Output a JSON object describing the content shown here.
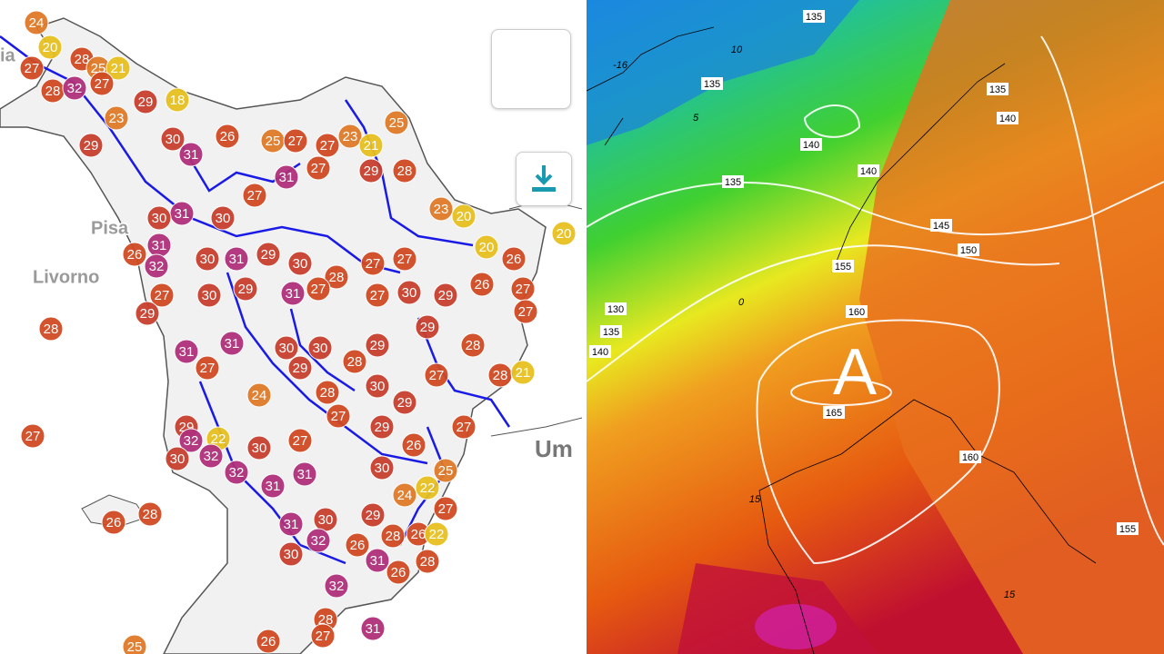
{
  "left_map": {
    "place_labels": [
      "ia",
      "Pisa",
      "Livorno",
      "Um"
    ],
    "stations": [
      24,
      20,
      27,
      28,
      32,
      28,
      25,
      21,
      27,
      18,
      29,
      23,
      29,
      30,
      31,
      26,
      25,
      27,
      27,
      23,
      21,
      25,
      28,
      29,
      27,
      31,
      27,
      30,
      31,
      30,
      26,
      31,
      32,
      30,
      31,
      29,
      30,
      28,
      27,
      27,
      23,
      20,
      20,
      26,
      20,
      27,
      27,
      26,
      29,
      29,
      30,
      27,
      27,
      31,
      29,
      30,
      27,
      29,
      28,
      31,
      31,
      30,
      30,
      29,
      28,
      28,
      28,
      21,
      27,
      29,
      30,
      28,
      29,
      24,
      27,
      29,
      32,
      22,
      30,
      32,
      30,
      27,
      27,
      29,
      26,
      25,
      30,
      27,
      27,
      32,
      31,
      31,
      24,
      22,
      27,
      29,
      30,
      32,
      31,
      30,
      26,
      28,
      26,
      22,
      31,
      28,
      26,
      32,
      26,
      28,
      25,
      26,
      28,
      27,
      31
    ]
  },
  "right_map": {
    "isobars": [
      135,
      135,
      135,
      140,
      140,
      135,
      140,
      145,
      150,
      155,
      160,
      165,
      160,
      155,
      130,
      135,
      140
    ],
    "temperature_labels": [
      -16,
      10,
      5,
      0,
      15,
      15
    ],
    "pressure_center": "A"
  }
}
